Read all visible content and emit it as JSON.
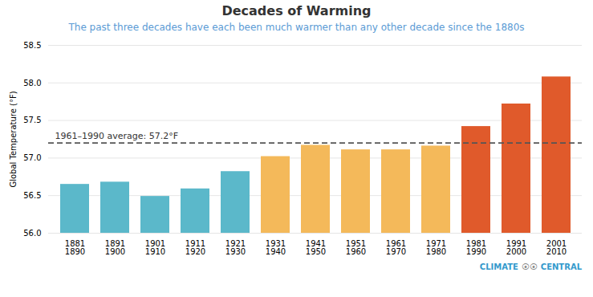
{
  "chart_data": {
    "type": "bar",
    "title": "Decades of Warming",
    "subtitle": "The past three decades have each been much warmer than any other decade since the 1880s",
    "ylabel": "Global Temperature (°F)",
    "categories": [
      "1881\n1890",
      "1891\n1900",
      "1901\n1910",
      "1911\n1920",
      "1921\n1930",
      "1931\n1940",
      "1941\n1950",
      "1951\n1960",
      "1961\n1970",
      "1971\n1980",
      "1981\n1990",
      "1991\n2000",
      "2001\n2010"
    ],
    "values": [
      56.65,
      56.68,
      56.49,
      56.59,
      56.82,
      57.02,
      57.17,
      57.11,
      57.11,
      57.16,
      57.42,
      57.72,
      58.08
    ],
    "colors": [
      "#5bb8ca",
      "#5bb8ca",
      "#5bb8ca",
      "#5bb8ca",
      "#5bb8ca",
      "#f4b95a",
      "#f4b95a",
      "#f4b95a",
      "#f4b95a",
      "#f4b95a",
      "#e05a2b",
      "#e05a2b",
      "#e05a2b"
    ],
    "ylim": [
      56.0,
      58.5
    ],
    "yticks": [
      {
        "value": 56.0,
        "label": "56.0"
      },
      56.5,
      {
        "value": 57.0,
        "label": "57.0"
      },
      57.5,
      {
        "value": 58.0,
        "label": "58.0"
      },
      58.5
    ],
    "grid": true,
    "annotations": [
      {
        "y": 57.2,
        "text": "1961–1990 average: 57.2°F",
        "color": "#555555",
        "line_style": "dashed"
      },
      {
        "text": "CLIMATE",
        "color": "#3399cc"
      },
      {
        "text": "⦿⦿",
        "color": "#888888"
      },
      {
        "text": "CENTRAL",
        "color": "#3399cc"
      }
    ]
  }
}
